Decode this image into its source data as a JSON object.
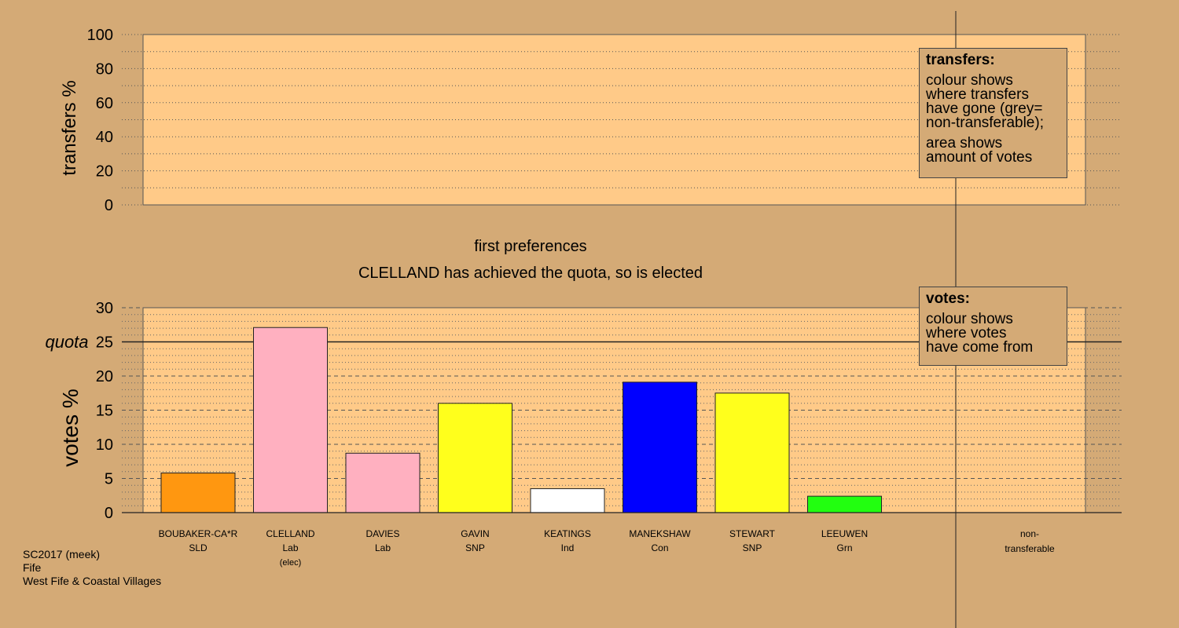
{
  "chart_data": [
    {
      "type": "bar",
      "panel": "transfers",
      "ylabel": "transfers %",
      "ylim": [
        0,
        100
      ],
      "yticks": [
        0,
        20,
        40,
        60,
        80,
        100
      ],
      "values": [],
      "grid": true,
      "legend": {
        "title": "transfers:",
        "lines1": [
          "colour shows",
          "where transfers",
          "have gone (grey=",
          "non-transferable);"
        ],
        "lines2": [
          "area shows",
          "amount of votes"
        ]
      }
    },
    {
      "type": "bar",
      "panel": "votes",
      "title": "first preferences",
      "subtitle": "CLELLAND has achieved the quota, so is elected",
      "ylabel": "votes %",
      "ylim": [
        0,
        30
      ],
      "yticks": [
        0,
        5,
        10,
        15,
        20,
        25,
        30
      ],
      "quota": 25,
      "quota_label": "quota",
      "grid": true,
      "categories": [
        {
          "name": "BOUBAKER-CA*R",
          "party": "SLD",
          "note": "",
          "value": 5.8,
          "color": "#ff9710"
        },
        {
          "name": "CLELLAND",
          "party": "Lab",
          "note": "(elec)",
          "value": 27.1,
          "color": "#ffb0c0"
        },
        {
          "name": "DAVIES",
          "party": "Lab",
          "note": "",
          "value": 8.7,
          "color": "#ffb0c0"
        },
        {
          "name": "GAVIN",
          "party": "SNP",
          "note": "",
          "value": 16.0,
          "color": "#ffff1c"
        },
        {
          "name": "KEATINGS",
          "party": "Ind",
          "note": "",
          "value": 3.5,
          "color": "#ffffff"
        },
        {
          "name": "MANEKSHAW",
          "party": "Con",
          "note": "",
          "value": 19.1,
          "color": "#0000ff"
        },
        {
          "name": "STEWART",
          "party": "SNP",
          "note": "",
          "value": 17.5,
          "color": "#ffff1c"
        },
        {
          "name": "LEEUWEN",
          "party": "Grn",
          "note": "",
          "value": 2.4,
          "color": "#22ff10"
        }
      ],
      "nontransferable": {
        "line1": "non-",
        "line2": "transferable"
      },
      "legend": {
        "title": "votes:",
        "lines": [
          "colour shows",
          "where votes",
          "have come from"
        ]
      }
    }
  ],
  "footer": {
    "line1": "SC2017 (meek)",
    "line2": "Fife",
    "line3": "West Fife & Coastal Villages"
  },
  "colors": {
    "background": "#d4aa76",
    "plot_fill": "#ffca88"
  }
}
